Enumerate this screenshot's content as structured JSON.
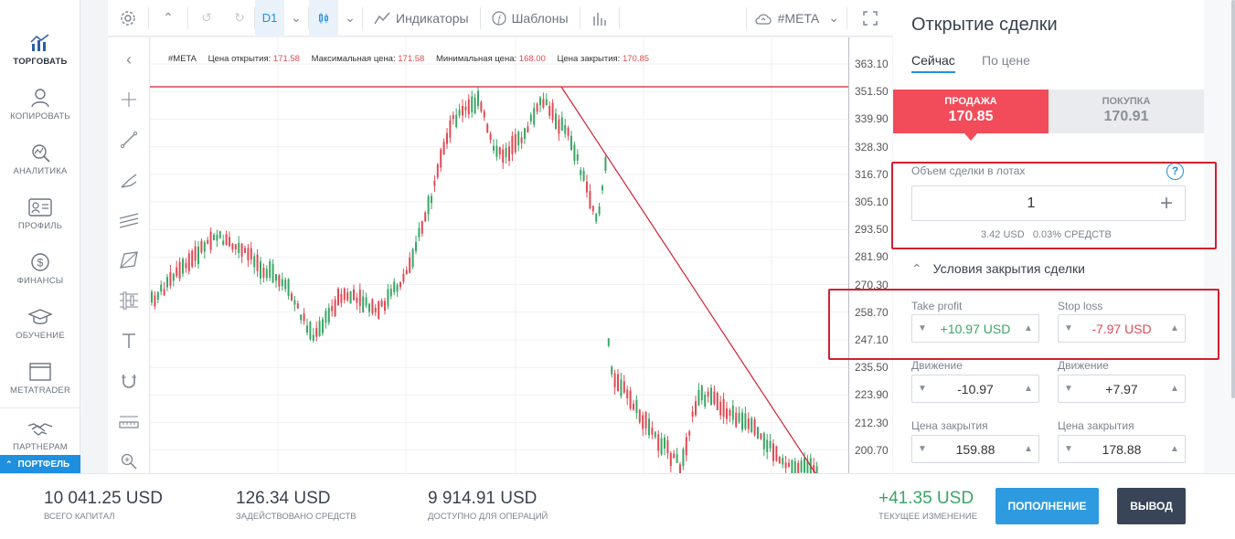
{
  "nav": {
    "items": [
      {
        "label": "ТОРГОВАТЬ",
        "icon": "chart-bars-icon",
        "active": true
      },
      {
        "label": "КОПИРОВАТЬ",
        "icon": "user-copy-icon",
        "active": false
      },
      {
        "label": "АНАЛИТИКА",
        "icon": "analytics-icon",
        "active": false
      },
      {
        "label": "ПРОФИЛЬ",
        "icon": "profile-card-icon",
        "active": false
      },
      {
        "label": "ФИНАНСЫ",
        "icon": "dollar-coin-icon",
        "active": false
      },
      {
        "label": "ОБУЧЕНИЕ",
        "icon": "graduation-cap-icon",
        "active": false
      },
      {
        "label": "METATRADER",
        "icon": "window-icon",
        "active": false
      },
      {
        "label": "ПАРТНЕРАМ",
        "icon": "handshake-icon",
        "active": false
      }
    ],
    "portfolio_label": "ПОРТФЕЛЬ"
  },
  "toolbar": {
    "timeframe": "D1",
    "indicators_label": "Индикаторы",
    "templates_label": "Шаблоны",
    "symbol": "#META"
  },
  "legend": {
    "symbol": "#META",
    "open_label": "Цена открытия:",
    "open_value": "171.58",
    "max_label": "Максимальная цена:",
    "max_value": "171.58",
    "min_label": "Минимальная цена:",
    "min_value": "168.00",
    "close_label": "Цена закрытия:",
    "close_value": "170.85"
  },
  "price_axis": {
    "ticks": [
      "363.10",
      "351.50",
      "339.90",
      "328.30",
      "316.70",
      "305.10",
      "293.50",
      "281.90",
      "270.30",
      "258.70",
      "247.10",
      "235.50",
      "223.90",
      "212.30",
      "200.70"
    ]
  },
  "trade": {
    "title": "Открытие сделки",
    "tab_now": "Сейчас",
    "tab_price": "По цене",
    "sell_label": "ПРОДАЖА",
    "sell_price": "170.85",
    "buy_label": "ПОКУПКА",
    "buy_price": "170.91",
    "volume_label": "Объем сделки в лотах",
    "volume_value": "1",
    "volume_info": "3.42 USD   0.03% СРЕДСТВ",
    "close_conditions_label": "Условия закрытия сделки",
    "take_profit_label": "Take profit",
    "take_profit_value": "+10.97 USD",
    "stop_loss_label": "Stop loss",
    "stop_loss_value": "-7.97 USD",
    "tp_move_label": "Движение",
    "tp_move_value": "-10.97",
    "sl_move_label": "Движение",
    "sl_move_value": "+7.97",
    "tp_close_label": "Цена закрытия",
    "tp_close_value": "159.88",
    "sl_close_label": "Цена закрытия",
    "sl_close_value": "178.88"
  },
  "bottom": {
    "total_capital": "10 041.25 USD",
    "total_capital_label": "ВСЕГО КАПИТАЛ",
    "used_funds": "126.34 USD",
    "used_funds_label": "ЗАДЕЙСТВОВАНО СРЕДСТВ",
    "available": "9 914.91 USD",
    "available_label": "ДОСТУПНО ДЛЯ ОПЕРАЦИЙ",
    "current_change": "+41.35 USD",
    "current_change_label": "ТЕКУЩЕЕ ИЗМЕНЕНИЕ",
    "deposit_label": "ПОПОЛНЕНИЕ",
    "withdraw_label": "ВЫВОД"
  },
  "colors": {
    "sell": "#f24c5a",
    "accent": "#1f8fe0",
    "up_candle": "#3aa665",
    "down_candle": "#e04a54",
    "profit_green": "#3aa665",
    "loss_red": "#e04a54"
  }
}
